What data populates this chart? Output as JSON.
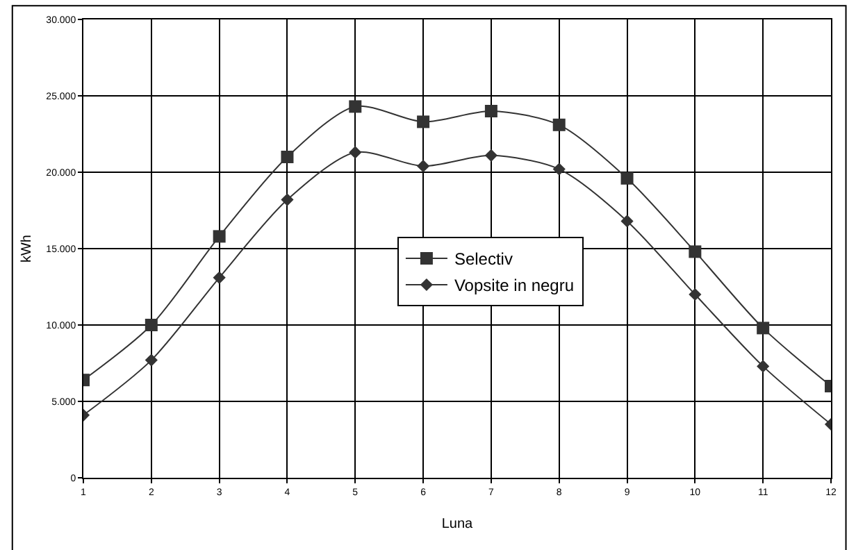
{
  "chart_data": {
    "type": "line",
    "xlabel": "Luna",
    "ylabel": "kWh",
    "x": [
      1,
      2,
      3,
      4,
      5,
      6,
      7,
      8,
      9,
      10,
      11,
      12
    ],
    "series": [
      {
        "name": "Selectiv",
        "color": "#333333",
        "marker": "square",
        "values": [
          6400,
          10000,
          15800,
          21000,
          24300,
          23300,
          24000,
          23100,
          19600,
          14800,
          9800,
          6000
        ]
      },
      {
        "name": "Vopsite in negru",
        "color": "#333333",
        "marker": "diamond",
        "values": [
          4100,
          7700,
          13100,
          18200,
          21300,
          20400,
          21100,
          20200,
          16800,
          12000,
          7300,
          3500
        ]
      }
    ],
    "xlim": [
      1,
      12
    ],
    "xticks": [
      1,
      2,
      3,
      4,
      5,
      6,
      7,
      8,
      9,
      10,
      11,
      12
    ],
    "ylim": [
      0,
      30000
    ],
    "yticks": [
      0,
      {
        "value": 5000,
        "label": "5.000"
      },
      {
        "value": 10000,
        "label": "10.000"
      },
      {
        "value": 15000,
        "label": "15.000"
      },
      {
        "value": 20000,
        "label": "20.000"
      },
      {
        "value": 25000,
        "label": "25.000"
      },
      {
        "value": 30000,
        "label": "30.000"
      }
    ],
    "grid": true,
    "legend": "center",
    "line_style": "solid"
  }
}
